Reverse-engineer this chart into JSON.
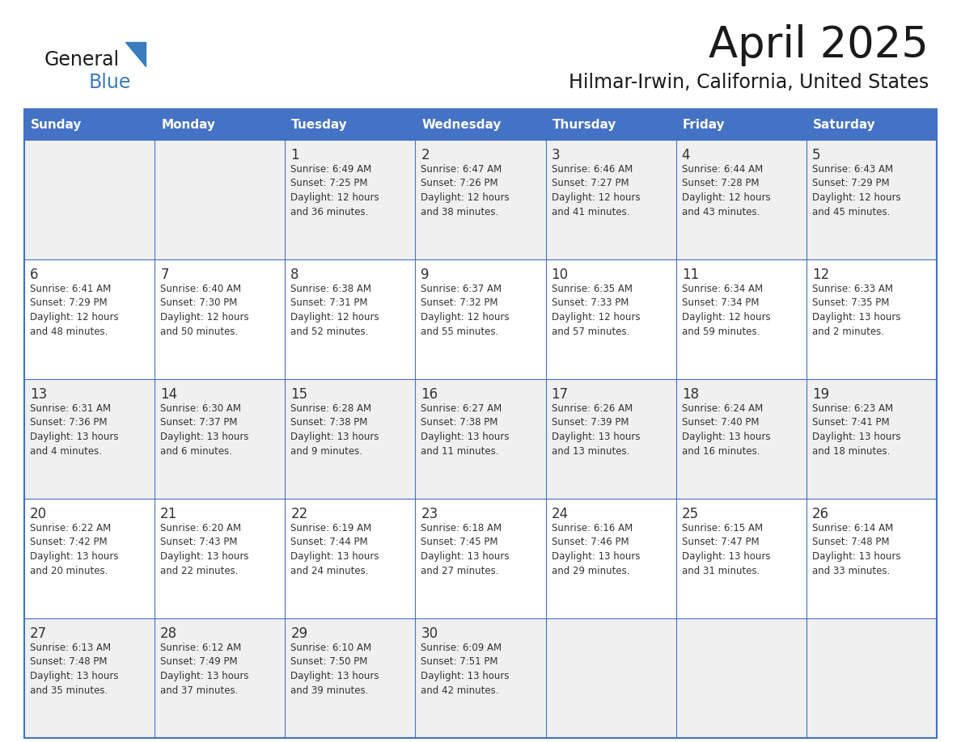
{
  "title": "April 2025",
  "subtitle": "Hilmar-Irwin, California, United States",
  "days_of_week": [
    "Sunday",
    "Monday",
    "Tuesday",
    "Wednesday",
    "Thursday",
    "Friday",
    "Saturday"
  ],
  "header_bg": "#4472C4",
  "header_text": "#FFFFFF",
  "row_bg_odd": "#F0F0F0",
  "row_bg_even": "#FFFFFF",
  "cell_border": "#4472C4",
  "text_color": "#333333",
  "calendar_data": [
    [
      "",
      "",
      "1\nSunrise: 6:49 AM\nSunset: 7:25 PM\nDaylight: 12 hours\nand 36 minutes.",
      "2\nSunrise: 6:47 AM\nSunset: 7:26 PM\nDaylight: 12 hours\nand 38 minutes.",
      "3\nSunrise: 6:46 AM\nSunset: 7:27 PM\nDaylight: 12 hours\nand 41 minutes.",
      "4\nSunrise: 6:44 AM\nSunset: 7:28 PM\nDaylight: 12 hours\nand 43 minutes.",
      "5\nSunrise: 6:43 AM\nSunset: 7:29 PM\nDaylight: 12 hours\nand 45 minutes."
    ],
    [
      "6\nSunrise: 6:41 AM\nSunset: 7:29 PM\nDaylight: 12 hours\nand 48 minutes.",
      "7\nSunrise: 6:40 AM\nSunset: 7:30 PM\nDaylight: 12 hours\nand 50 minutes.",
      "8\nSunrise: 6:38 AM\nSunset: 7:31 PM\nDaylight: 12 hours\nand 52 minutes.",
      "9\nSunrise: 6:37 AM\nSunset: 7:32 PM\nDaylight: 12 hours\nand 55 minutes.",
      "10\nSunrise: 6:35 AM\nSunset: 7:33 PM\nDaylight: 12 hours\nand 57 minutes.",
      "11\nSunrise: 6:34 AM\nSunset: 7:34 PM\nDaylight: 12 hours\nand 59 minutes.",
      "12\nSunrise: 6:33 AM\nSunset: 7:35 PM\nDaylight: 13 hours\nand 2 minutes."
    ],
    [
      "13\nSunrise: 6:31 AM\nSunset: 7:36 PM\nDaylight: 13 hours\nand 4 minutes.",
      "14\nSunrise: 6:30 AM\nSunset: 7:37 PM\nDaylight: 13 hours\nand 6 minutes.",
      "15\nSunrise: 6:28 AM\nSunset: 7:38 PM\nDaylight: 13 hours\nand 9 minutes.",
      "16\nSunrise: 6:27 AM\nSunset: 7:38 PM\nDaylight: 13 hours\nand 11 minutes.",
      "17\nSunrise: 6:26 AM\nSunset: 7:39 PM\nDaylight: 13 hours\nand 13 minutes.",
      "18\nSunrise: 6:24 AM\nSunset: 7:40 PM\nDaylight: 13 hours\nand 16 minutes.",
      "19\nSunrise: 6:23 AM\nSunset: 7:41 PM\nDaylight: 13 hours\nand 18 minutes."
    ],
    [
      "20\nSunrise: 6:22 AM\nSunset: 7:42 PM\nDaylight: 13 hours\nand 20 minutes.",
      "21\nSunrise: 6:20 AM\nSunset: 7:43 PM\nDaylight: 13 hours\nand 22 minutes.",
      "22\nSunrise: 6:19 AM\nSunset: 7:44 PM\nDaylight: 13 hours\nand 24 minutes.",
      "23\nSunrise: 6:18 AM\nSunset: 7:45 PM\nDaylight: 13 hours\nand 27 minutes.",
      "24\nSunrise: 6:16 AM\nSunset: 7:46 PM\nDaylight: 13 hours\nand 29 minutes.",
      "25\nSunrise: 6:15 AM\nSunset: 7:47 PM\nDaylight: 13 hours\nand 31 minutes.",
      "26\nSunrise: 6:14 AM\nSunset: 7:48 PM\nDaylight: 13 hours\nand 33 minutes."
    ],
    [
      "27\nSunrise: 6:13 AM\nSunset: 7:48 PM\nDaylight: 13 hours\nand 35 minutes.",
      "28\nSunrise: 6:12 AM\nSunset: 7:49 PM\nDaylight: 13 hours\nand 37 minutes.",
      "29\nSunrise: 6:10 AM\nSunset: 7:50 PM\nDaylight: 13 hours\nand 39 minutes.",
      "30\nSunrise: 6:09 AM\nSunset: 7:51 PM\nDaylight: 13 hours\nand 42 minutes.",
      "",
      "",
      ""
    ]
  ]
}
